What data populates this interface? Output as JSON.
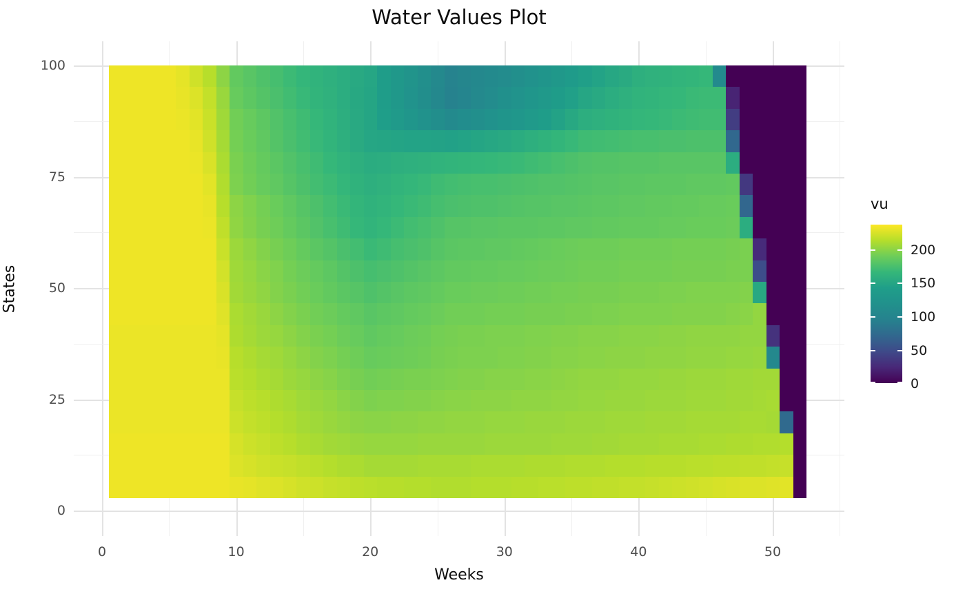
{
  "title": "Water Values Plot",
  "axes": {
    "x": {
      "label": "Weeks",
      "ticks": [
        0,
        10,
        20,
        30,
        40,
        50
      ],
      "minor_step": 5
    },
    "y": {
      "label": "States",
      "ticks": [
        0,
        25,
        50,
        75,
        100
      ],
      "minor_step": 12.5
    }
  },
  "legend": {
    "title": "vu",
    "ticks": [
      200,
      150,
      100,
      50,
      0
    ]
  },
  "colors": {
    "background": "#ffffff",
    "title_text": "#0d0d0d",
    "tick_text": "#4d4d4d",
    "grid_major": "#e3e3e3",
    "grid_minor": "#f0f0f0",
    "viridis_low": "#440154",
    "viridis_high": "#fde725"
  },
  "chart_data": {
    "type": "heatmap",
    "title": "Water Values Plot",
    "xlabel": "Weeks",
    "ylabel": "States",
    "legend_label": "vu",
    "grid": true,
    "legend_position": "right",
    "xlim": [
      -2,
      56
    ],
    "ylim": [
      -5,
      105
    ],
    "vmin": 0,
    "vmax": 237,
    "colorscale": [
      [
        0.0,
        "#440154"
      ],
      [
        0.1,
        "#482878"
      ],
      [
        0.2,
        "#3e4a89"
      ],
      [
        0.3,
        "#31688e"
      ],
      [
        0.4,
        "#26828e"
      ],
      [
        0.5,
        "#21918c"
      ],
      [
        0.6,
        "#1f9e89"
      ],
      [
        0.7,
        "#35b779"
      ],
      [
        0.8,
        "#6dcd59"
      ],
      [
        0.9,
        "#b5de2b"
      ],
      [
        1.0,
        "#fde725"
      ]
    ],
    "weeks": [
      1,
      2,
      3,
      4,
      5,
      6,
      7,
      8,
      9,
      10,
      11,
      12,
      13,
      14,
      15,
      16,
      17,
      18,
      19,
      20,
      21,
      22,
      23,
      24,
      25,
      26,
      27,
      28,
      29,
      30,
      31,
      32,
      33,
      34,
      35,
      36,
      37,
      38,
      39,
      40,
      41,
      42,
      43,
      44,
      45,
      46,
      47,
      48,
      49,
      50,
      51,
      52
    ],
    "states": [
      100,
      95,
      90,
      85,
      80,
      75,
      70,
      65,
      60,
      55,
      50,
      45,
      40,
      35,
      30,
      25,
      20,
      15,
      10,
      5
    ],
    "values": [
      [
        232,
        232,
        232,
        232,
        232,
        229,
        222,
        214,
        200,
        185,
        181,
        177,
        173,
        169,
        165,
        162,
        159,
        156,
        153,
        150,
        141,
        132,
        124,
        115,
        106,
        97,
        101,
        104,
        108,
        111,
        115,
        121,
        126,
        132,
        137,
        143,
        147,
        151,
        154,
        158,
        160,
        161,
        163,
        164,
        166,
        107,
        0,
        0,
        0,
        0,
        0,
        0
      ],
      [
        232,
        232,
        232,
        232,
        232,
        230,
        226,
        218,
        204,
        187,
        183,
        179,
        175,
        171,
        167,
        163,
        160,
        156,
        152,
        149,
        140,
        131,
        122,
        113,
        104,
        95,
        100,
        106,
        111,
        117,
        122,
        128,
        133,
        139,
        144,
        150,
        153,
        156,
        159,
        162,
        163,
        165,
        166,
        168,
        169,
        169,
        21,
        0,
        0,
        0,
        0,
        0
      ],
      [
        232,
        232,
        232,
        232,
        232,
        231,
        228,
        220,
        206,
        191,
        187,
        183,
        178,
        174,
        170,
        166,
        162,
        157,
        153,
        149,
        142,
        135,
        128,
        121,
        114,
        107,
        112,
        116,
        121,
        125,
        130,
        135,
        141,
        146,
        152,
        157,
        159,
        161,
        163,
        165,
        166,
        167,
        169,
        170,
        171,
        171,
        38,
        0,
        0,
        0,
        0,
        0
      ],
      [
        232,
        232,
        232,
        232,
        232,
        232,
        230,
        222,
        208,
        192,
        188,
        184,
        179,
        175,
        171,
        167,
        163,
        158,
        154,
        150,
        149,
        148,
        147,
        147,
        146,
        145,
        147,
        149,
        151,
        153,
        155,
        158,
        161,
        164,
        167,
        170,
        171,
        172,
        173,
        174,
        174,
        175,
        175,
        176,
        176,
        176,
        71,
        0,
        0,
        0,
        0,
        0
      ],
      [
        232,
        232,
        232,
        232,
        232,
        232,
        231,
        225,
        210,
        194,
        190,
        186,
        182,
        178,
        174,
        170,
        166,
        162,
        158,
        155,
        156,
        158,
        159,
        160,
        162,
        163,
        164,
        165,
        166,
        167,
        168,
        170,
        172,
        174,
        176,
        178,
        179,
        179,
        180,
        180,
        180,
        181,
        181,
        181,
        181,
        181,
        156,
        0,
        0,
        0,
        0,
        0
      ],
      [
        232,
        232,
        232,
        232,
        232,
        232,
        232,
        228,
        212,
        195,
        191,
        187,
        184,
        180,
        176,
        172,
        169,
        165,
        161,
        158,
        160,
        163,
        165,
        167,
        170,
        172,
        173,
        174,
        174,
        175,
        176,
        177,
        178,
        178,
        179,
        180,
        181,
        181,
        182,
        182,
        183,
        183,
        183,
        184,
        184,
        184,
        185,
        35,
        0,
        0,
        0,
        0
      ],
      [
        232,
        232,
        232,
        232,
        232,
        232,
        232,
        230,
        214,
        200,
        196,
        192,
        188,
        184,
        180,
        176,
        172,
        168,
        164,
        161,
        163,
        166,
        168,
        170,
        173,
        175,
        176,
        177,
        177,
        178,
        179,
        180,
        180,
        181,
        181,
        182,
        183,
        183,
        184,
        184,
        185,
        185,
        186,
        186,
        187,
        187,
        188,
        70,
        0,
        0,
        0,
        0
      ],
      [
        232,
        232,
        232,
        232,
        232,
        232,
        232,
        231,
        217,
        201,
        197,
        193,
        190,
        186,
        182,
        178,
        174,
        170,
        166,
        163,
        166,
        169,
        172,
        174,
        177,
        180,
        180,
        181,
        181,
        182,
        182,
        182,
        183,
        183,
        184,
        184,
        185,
        185,
        186,
        186,
        186,
        187,
        187,
        188,
        188,
        188,
        189,
        156,
        0,
        0,
        0,
        0
      ],
      [
        232,
        232,
        232,
        232,
        232,
        232,
        232,
        232,
        220,
        205,
        201,
        197,
        193,
        190,
        186,
        182,
        179,
        175,
        172,
        168,
        170,
        173,
        175,
        177,
        180,
        182,
        183,
        183,
        184,
        184,
        185,
        186,
        187,
        188,
        189,
        190,
        190,
        190,
        191,
        191,
        191,
        191,
        192,
        192,
        192,
        192,
        193,
        194,
        26,
        0,
        0,
        0
      ],
      [
        232,
        232,
        232,
        232,
        232,
        232,
        232,
        232,
        223,
        206,
        203,
        199,
        196,
        192,
        189,
        186,
        183,
        179,
        176,
        173,
        175,
        177,
        179,
        181,
        183,
        185,
        185,
        186,
        186,
        187,
        187,
        188,
        189,
        189,
        190,
        191,
        191,
        191,
        192,
        192,
        192,
        192,
        193,
        193,
        193,
        193,
        194,
        194,
        50,
        0,
        0,
        0
      ],
      [
        232,
        232,
        232,
        232,
        232,
        232,
        232,
        232,
        225,
        207,
        204,
        201,
        197,
        194,
        191,
        188,
        185,
        182,
        180,
        177,
        179,
        181,
        183,
        184,
        186,
        188,
        188,
        189,
        189,
        190,
        190,
        191,
        191,
        192,
        192,
        193,
        193,
        193,
        194,
        194,
        194,
        195,
        195,
        196,
        196,
        196,
        196,
        197,
        152,
        0,
        0,
        0
      ],
      [
        232,
        232,
        232,
        232,
        232,
        232,
        232,
        232,
        227,
        210,
        207,
        204,
        200,
        197,
        194,
        191,
        189,
        186,
        184,
        181,
        183,
        184,
        186,
        187,
        189,
        191,
        191,
        191,
        192,
        192,
        192,
        193,
        193,
        193,
        194,
        194,
        195,
        195,
        196,
        196,
        196,
        196,
        197,
        197,
        197,
        197,
        198,
        199,
        202,
        0,
        0,
        0
      ],
      [
        231,
        231,
        231,
        231,
        231,
        231,
        231,
        231,
        229,
        211,
        208,
        205,
        203,
        200,
        197,
        194,
        192,
        189,
        187,
        184,
        186,
        187,
        189,
        190,
        192,
        193,
        194,
        194,
        195,
        195,
        195,
        196,
        196,
        197,
        197,
        198,
        198,
        198,
        199,
        199,
        199,
        200,
        200,
        201,
        201,
        201,
        201,
        202,
        202,
        31,
        0,
        0
      ],
      [
        231,
        231,
        231,
        231,
        231,
        231,
        231,
        231,
        230,
        214,
        211,
        208,
        206,
        203,
        200,
        197,
        195,
        192,
        190,
        187,
        188,
        189,
        190,
        191,
        193,
        194,
        195,
        195,
        195,
        196,
        196,
        197,
        197,
        198,
        198,
        199,
        199,
        200,
        200,
        200,
        201,
        201,
        201,
        202,
        202,
        202,
        203,
        203,
        204,
        104,
        0,
        0
      ],
      [
        231,
        231,
        231,
        231,
        231,
        231,
        231,
        231,
        231,
        215,
        213,
        210,
        208,
        205,
        203,
        200,
        198,
        195,
        193,
        191,
        192,
        193,
        194,
        194,
        195,
        196,
        197,
        197,
        198,
        198,
        198,
        199,
        199,
        200,
        201,
        202,
        202,
        202,
        203,
        203,
        203,
        204,
        204,
        205,
        205,
        205,
        206,
        206,
        207,
        207,
        0,
        0
      ],
      [
        231,
        231,
        231,
        231,
        231,
        231,
        231,
        231,
        231,
        219,
        216,
        214,
        211,
        209,
        206,
        204,
        202,
        199,
        197,
        195,
        196,
        196,
        197,
        197,
        198,
        199,
        199,
        200,
        200,
        200,
        201,
        201,
        201,
        202,
        202,
        203,
        203,
        204,
        204,
        204,
        205,
        205,
        205,
        206,
        206,
        206,
        207,
        207,
        208,
        209,
        0,
        0
      ],
      [
        231,
        231,
        231,
        231,
        231,
        231,
        231,
        231,
        231,
        221,
        218,
        216,
        213,
        211,
        208,
        206,
        204,
        202,
        200,
        199,
        199,
        200,
        200,
        201,
        201,
        202,
        202,
        202,
        203,
        203,
        203,
        204,
        204,
        204,
        205,
        205,
        205,
        206,
        206,
        206,
        207,
        207,
        207,
        208,
        208,
        208,
        208,
        209,
        209,
        208,
        73,
        0
      ],
      [
        232,
        232,
        232,
        232,
        232,
        232,
        232,
        232,
        232,
        224,
        221,
        219,
        216,
        214,
        211,
        209,
        207,
        206,
        204,
        203,
        203,
        203,
        203,
        204,
        204,
        204,
        204,
        204,
        205,
        205,
        205,
        205,
        205,
        206,
        206,
        206,
        207,
        207,
        208,
        208,
        208,
        209,
        209,
        209,
        210,
        210,
        211,
        211,
        212,
        212,
        213,
        0
      ],
      [
        232,
        232,
        232,
        232,
        232,
        232,
        232,
        232,
        232,
        226,
        224,
        222,
        220,
        219,
        217,
        215,
        213,
        211,
        210,
        208,
        208,
        208,
        208,
        209,
        209,
        209,
        209,
        210,
        210,
        210,
        210,
        211,
        211,
        211,
        212,
        212,
        212,
        213,
        213,
        213,
        214,
        214,
        214,
        215,
        215,
        216,
        216,
        217,
        217,
        218,
        219,
        0
      ],
      [
        232,
        232,
        232,
        232,
        232,
        232,
        232,
        232,
        232,
        230,
        229,
        227,
        226,
        224,
        222,
        221,
        219,
        218,
        216,
        215,
        214,
        214,
        213,
        213,
        212,
        212,
        212,
        213,
        213,
        213,
        214,
        214,
        215,
        215,
        216,
        216,
        217,
        217,
        218,
        218,
        219,
        220,
        221,
        222,
        223,
        224,
        225,
        226,
        226,
        227,
        228,
        0
      ]
    ]
  }
}
